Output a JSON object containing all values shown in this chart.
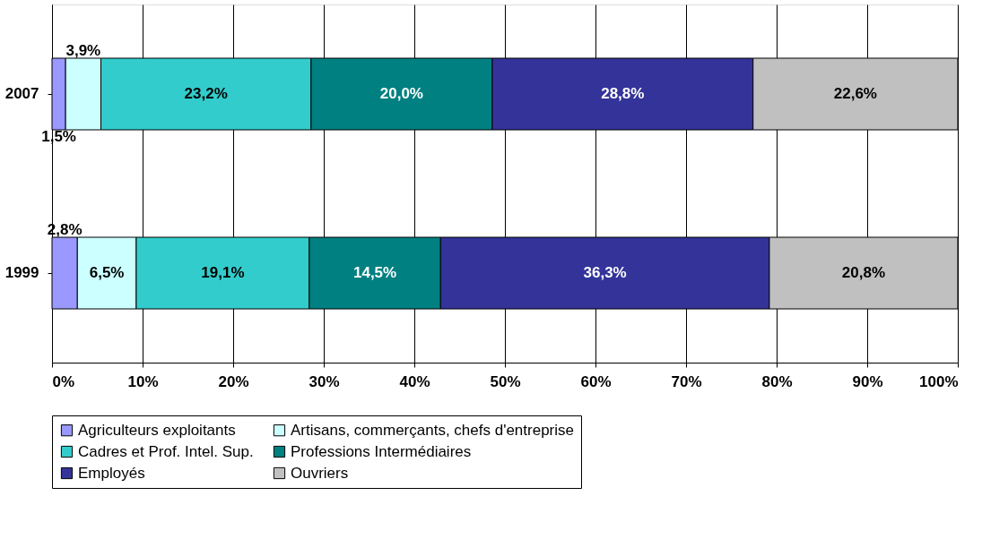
{
  "chart_data": {
    "type": "bar",
    "orientation": "horizontal",
    "stacked": true,
    "categories": [
      "2007",
      "1999"
    ],
    "series": [
      {
        "name": "Agriculteurs exploitants",
        "color": "#9999ff",
        "values": [
          1.5,
          2.8
        ],
        "value_labels": [
          "1,5%",
          "2,8%"
        ]
      },
      {
        "name": "Artisans, commerçants, chefs d'entreprise",
        "color": "#ccffff",
        "values": [
          3.9,
          6.5
        ],
        "value_labels": [
          "3,9%",
          "6,5%"
        ]
      },
      {
        "name": "Cadres et Prof. Intel. Sup.",
        "color": "#33cccc",
        "values": [
          23.2,
          19.1
        ],
        "value_labels": [
          "23,2%",
          "19,1%"
        ]
      },
      {
        "name": "Professions Intermédiaires",
        "color": "#008080",
        "values": [
          20.0,
          14.5
        ],
        "value_labels": [
          "20,0%",
          "14,5%"
        ]
      },
      {
        "name": "Employés",
        "color": "#333399",
        "values": [
          28.8,
          36.3
        ],
        "value_labels": [
          "28,8%",
          "36,3%"
        ]
      },
      {
        "name": "Ouvriers",
        "color": "#c0c0c0",
        "values": [
          22.6,
          20.8
        ],
        "value_labels": [
          "22,6%",
          "20,8%"
        ]
      }
    ],
    "xlim": [
      0,
      100
    ],
    "xticks": [
      {
        "value": 0,
        "label": "0%"
      },
      {
        "value": 10,
        "label": "10%"
      },
      {
        "value": 20,
        "label": "20%"
      },
      {
        "value": 30,
        "label": "30%"
      },
      {
        "value": 40,
        "label": "40%"
      },
      {
        "value": 50,
        "label": "50%"
      },
      {
        "value": 60,
        "label": "60%"
      },
      {
        "value": 70,
        "label": "70%"
      },
      {
        "value": 80,
        "label": "80%"
      },
      {
        "value": 90,
        "label": "90%"
      },
      {
        "value": 100,
        "label": "100%"
      }
    ],
    "grid": "x",
    "legend": "bottom"
  }
}
